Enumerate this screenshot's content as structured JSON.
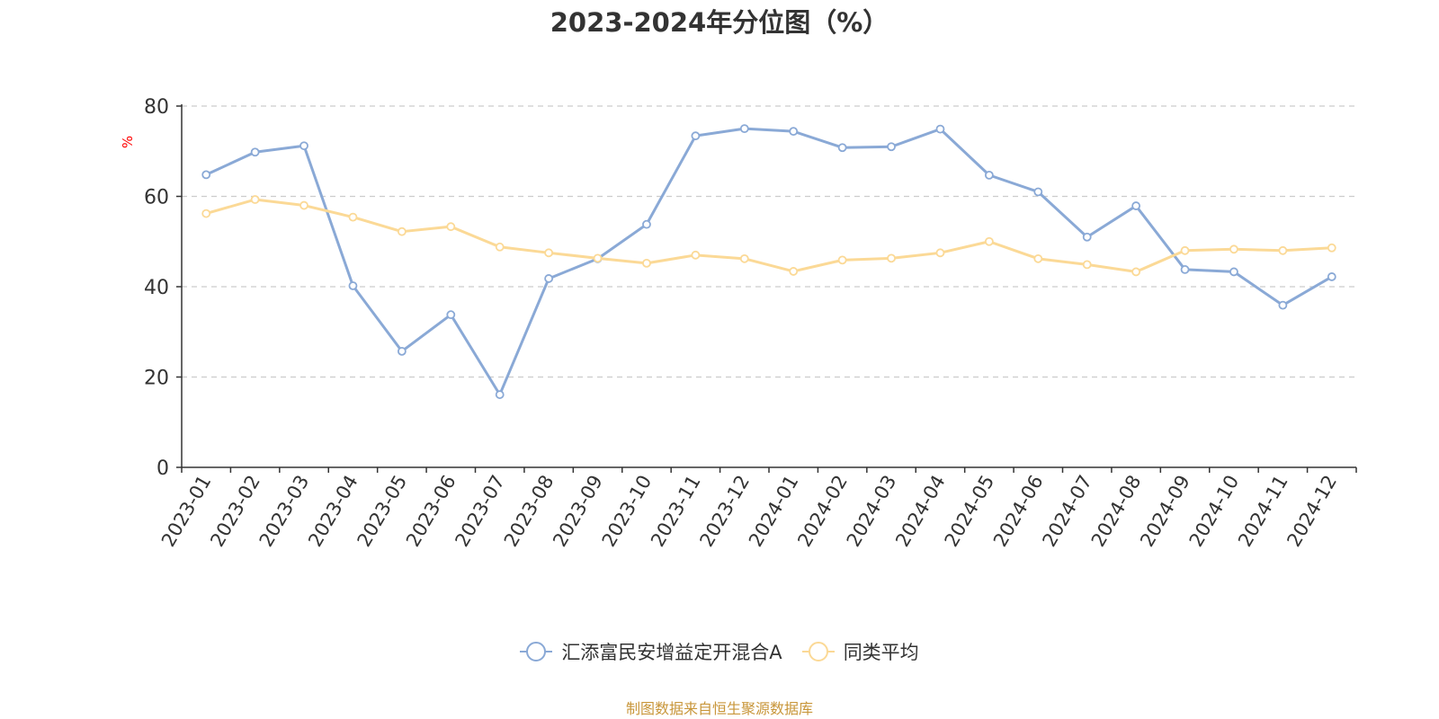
{
  "chart_data": {
    "type": "line",
    "title": "2023-2024年分位图（%）",
    "xlabel": "",
    "ylabel": "%",
    "ylim": [
      0,
      80
    ],
    "yticks": [
      0,
      20,
      40,
      60,
      80
    ],
    "grid": true,
    "legend_position": "bottom-center",
    "categories": [
      "2023-01",
      "2023-02",
      "2023-03",
      "2023-04",
      "2023-05",
      "2023-06",
      "2023-07",
      "2023-08",
      "2023-09",
      "2023-10",
      "2023-11",
      "2023-12",
      "2024-01",
      "2024-02",
      "2024-03",
      "2024-04",
      "2024-05",
      "2024-06",
      "2024-07",
      "2024-08",
      "2024-09",
      "2024-10",
      "2024-11",
      "2024-12"
    ],
    "series": [
      {
        "name": "汇添富民安增益定开混合A",
        "color": "#8aa9d6",
        "values": [
          64.8,
          69.8,
          71.2,
          40.2,
          25.7,
          33.8,
          16.1,
          41.8,
          46.2,
          53.8,
          73.4,
          75.0,
          74.4,
          70.8,
          71.0,
          74.9,
          64.7,
          61.0,
          51.0,
          57.9,
          43.8,
          43.3,
          35.9,
          42.2
        ]
      },
      {
        "name": "同类平均",
        "color": "#fbd996",
        "values": [
          56.2,
          59.3,
          58.0,
          55.4,
          52.2,
          53.3,
          48.8,
          47.5,
          46.3,
          45.2,
          47.0,
          46.2,
          43.4,
          45.9,
          46.3,
          47.5,
          50.0,
          46.2,
          44.9,
          43.3,
          48.0,
          48.3,
          48.0,
          48.6
        ]
      }
    ]
  },
  "footer": {
    "source": "制图数据来自恒生聚源数据库",
    "source_color": "#c8963a"
  },
  "ylabel_color": "#ff0000"
}
